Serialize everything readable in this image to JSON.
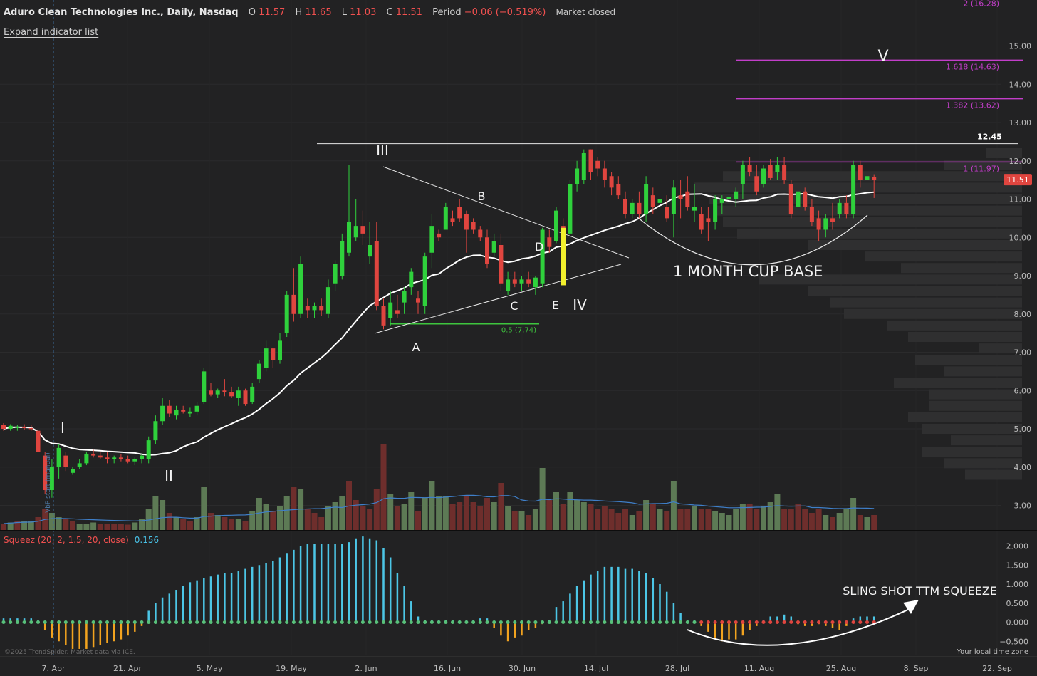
{
  "header": {
    "title": "Aduro Clean Technologies Inc., Daily, Nasdaq",
    "o_label": "O",
    "o": "11.57",
    "h_label": "H",
    "h": "11.65",
    "l_label": "L",
    "l": "11.03",
    "c_label": "C",
    "c": "11.51",
    "period_label": "Period",
    "period": "−0.06 (−0.519%)",
    "status": "Market closed"
  },
  "expand_link": "Expand indicator list",
  "squeeze": {
    "label": "Squeez (20, 2, 1.5, 20, close)",
    "value": "0.156"
  },
  "copyright": "©2025 TrendSpider. Market data via ICE.",
  "timezone": "Your local time zone",
  "colors": {
    "up": "#2fd13c",
    "down": "#e0453f",
    "ma": "#ffffff",
    "fib": "#c23ec9",
    "sq_up": "#4cc6e6",
    "sq_down": "#f2a31f",
    "sq_dot_green": "#58c07a",
    "sq_dot_red": "#e0453f",
    "highlight_bar": "#f3f02d",
    "price_tag": "#e0453f",
    "vol_up": "#5d7a55",
    "vol_down": "#6e2e2c"
  },
  "chart_data": {
    "type": "candlestick",
    "x_ticks": [
      "7. Apr",
      "21. Apr",
      "5. May",
      "19. May",
      "2. Jun",
      "16. Jun",
      "30. Jun",
      "14. Jul",
      "28. Jul",
      "11. Aug",
      "25. Aug",
      "8. Sep",
      "22. Sep"
    ],
    "y_ticks": [
      "3.00",
      "4.00",
      "5.00",
      "6.00",
      "7.00",
      "8.00",
      "9.00",
      "10.00",
      "11.00",
      "12.00",
      "13.00",
      "14.00",
      "15.00"
    ],
    "ylim": [
      2.3,
      16.5
    ],
    "last_price": "11.51",
    "resistance": {
      "value": 12.45,
      "label": "12.45"
    },
    "candles": [
      [
        5.1,
        5.15,
        4.95,
        5.0
      ],
      [
        5.0,
        5.12,
        4.95,
        5.08
      ],
      [
        5.05,
        5.1,
        4.95,
        5.05
      ],
      [
        5.05,
        5.12,
        4.98,
        5.02
      ],
      [
        5.02,
        5.1,
        4.95,
        5.0
      ],
      [
        4.95,
        5.0,
        4.3,
        4.4
      ],
      [
        4.3,
        4.4,
        3.3,
        3.4
      ],
      [
        3.4,
        4.2,
        3.2,
        4.0
      ],
      [
        4.0,
        4.6,
        3.7,
        4.5
      ],
      [
        4.3,
        4.4,
        3.9,
        4.0
      ],
      [
        3.85,
        4.0,
        3.8,
        3.95
      ],
      [
        4.0,
        4.2,
        3.95,
        4.1
      ],
      [
        4.1,
        4.4,
        4.05,
        4.35
      ],
      [
        4.35,
        4.45,
        4.25,
        4.3
      ],
      [
        4.3,
        4.4,
        4.2,
        4.25
      ],
      [
        4.25,
        4.4,
        4.1,
        4.2
      ],
      [
        4.2,
        4.3,
        4.1,
        4.25
      ],
      [
        4.25,
        4.35,
        4.15,
        4.2
      ],
      [
        4.2,
        4.3,
        4.1,
        4.15
      ],
      [
        4.15,
        4.25,
        4.05,
        4.2
      ],
      [
        4.2,
        4.35,
        4.1,
        4.3
      ],
      [
        4.2,
        4.8,
        4.1,
        4.7
      ],
      [
        4.7,
        5.35,
        4.6,
        5.2
      ],
      [
        5.2,
        5.8,
        5.1,
        5.6
      ],
      [
        5.6,
        5.75,
        5.3,
        5.4
      ],
      [
        5.35,
        5.6,
        5.25,
        5.5
      ],
      [
        5.5,
        5.6,
        5.4,
        5.45
      ],
      [
        5.4,
        5.55,
        5.3,
        5.45
      ],
      [
        5.45,
        5.7,
        5.35,
        5.6
      ],
      [
        5.7,
        6.6,
        5.65,
        6.5
      ],
      [
        6.0,
        6.2,
        5.85,
        5.9
      ],
      [
        5.9,
        6.05,
        5.8,
        6.0
      ],
      [
        6.0,
        6.3,
        5.85,
        5.95
      ],
      [
        5.95,
        6.1,
        5.8,
        5.85
      ],
      [
        5.8,
        6.1,
        5.6,
        6.0
      ],
      [
        6.0,
        6.05,
        5.6,
        5.65
      ],
      [
        5.7,
        6.2,
        5.65,
        6.1
      ],
      [
        6.3,
        6.8,
        6.2,
        6.7
      ],
      [
        6.6,
        7.3,
        6.5,
        7.1
      ],
      [
        7.1,
        7.1,
        6.6,
        6.8
      ],
      [
        6.8,
        7.5,
        6.7,
        7.3
      ],
      [
        7.5,
        8.6,
        7.4,
        8.5
      ],
      [
        8.5,
        9.2,
        7.8,
        8.0
      ],
      [
        8.0,
        9.5,
        7.9,
        9.3
      ],
      [
        8.2,
        8.4,
        7.9,
        8.1
      ],
      [
        8.1,
        8.3,
        7.9,
        8.2
      ],
      [
        8.2,
        8.4,
        7.95,
        8.1
      ],
      [
        8.0,
        8.9,
        7.9,
        8.7
      ],
      [
        8.8,
        9.4,
        8.6,
        9.3
      ],
      [
        9.0,
        10.1,
        8.9,
        9.9
      ],
      [
        9.6,
        11.9,
        9.5,
        10.4
      ],
      [
        10.0,
        11.0,
        9.9,
        10.3
      ],
      [
        10.3,
        10.7,
        9.8,
        10.1
      ],
      [
        9.5,
        10.4,
        9.3,
        9.8
      ],
      [
        9.9,
        10.4,
        8.1,
        8.2
      ],
      [
        8.2,
        8.4,
        7.6,
        7.7
      ],
      [
        7.9,
        8.6,
        7.7,
        8.3
      ],
      [
        8.1,
        8.5,
        7.9,
        8.0
      ],
      [
        8.3,
        8.7,
        8.0,
        8.6
      ],
      [
        8.7,
        9.2,
        8.5,
        9.1
      ],
      [
        8.4,
        8.6,
        8.0,
        8.3
      ],
      [
        8.2,
        9.6,
        8.0,
        9.5
      ],
      [
        9.6,
        10.6,
        9.2,
        10.3
      ],
      [
        10.1,
        10.2,
        9.9,
        10.0
      ],
      [
        10.2,
        10.9,
        10.2,
        10.8
      ],
      [
        10.5,
        10.7,
        10.3,
        10.4
      ],
      [
        10.8,
        11.0,
        10.4,
        10.5
      ],
      [
        10.6,
        10.7,
        9.6,
        10.2
      ],
      [
        10.4,
        10.5,
        10.1,
        10.2
      ],
      [
        10.2,
        10.3,
        9.9,
        10.0
      ],
      [
        10.0,
        10.2,
        9.2,
        9.3
      ],
      [
        9.6,
        10.1,
        9.5,
        9.9
      ],
      [
        9.8,
        10.1,
        8.6,
        8.8
      ],
      [
        8.6,
        9.1,
        8.5,
        8.9
      ],
      [
        8.9,
        9.1,
        8.7,
        8.8
      ],
      [
        8.8,
        9.0,
        8.6,
        8.9
      ],
      [
        8.9,
        9.1,
        8.7,
        8.8
      ],
      [
        8.7,
        9.0,
        8.5,
        8.95
      ],
      [
        8.8,
        10.25,
        8.7,
        10.2
      ],
      [
        10.0,
        10.2,
        9.6,
        9.75
      ],
      [
        9.9,
        10.8,
        9.85,
        10.7
      ],
      [
        10.3,
        10.5,
        10.0,
        10.1
      ],
      [
        10.1,
        11.5,
        10.05,
        11.4
      ],
      [
        11.4,
        12.0,
        11.2,
        11.8
      ],
      [
        11.5,
        12.3,
        11.4,
        12.2
      ],
      [
        12.3,
        12.3,
        11.5,
        11.7
      ],
      [
        12.0,
        12.1,
        11.6,
        11.8
      ],
      [
        11.8,
        12.0,
        11.3,
        11.5
      ],
      [
        11.6,
        11.7,
        11.1,
        11.3
      ],
      [
        11.4,
        11.6,
        11.0,
        11.1
      ],
      [
        11.0,
        11.2,
        10.5,
        10.6
      ],
      [
        10.6,
        11.0,
        10.5,
        10.9
      ],
      [
        10.9,
        11.2,
        10.5,
        10.6
      ],
      [
        10.6,
        11.6,
        10.4,
        11.4
      ],
      [
        11.1,
        11.3,
        10.6,
        10.8
      ],
      [
        10.9,
        11.2,
        10.6,
        11.0
      ],
      [
        10.8,
        11.1,
        10.4,
        10.5
      ],
      [
        10.6,
        11.5,
        10.0,
        11.3
      ],
      [
        11.1,
        11.5,
        10.5,
        11.0
      ],
      [
        11.2,
        11.6,
        10.7,
        10.8
      ],
      [
        10.7,
        11.4,
        10.4,
        10.8
      ],
      [
        10.6,
        10.8,
        10.1,
        10.2
      ],
      [
        10.5,
        10.8,
        9.9,
        10.4
      ],
      [
        10.4,
        11.1,
        10.2,
        11.0
      ],
      [
        10.9,
        11.1,
        10.6,
        11.0
      ],
      [
        11.0,
        11.1,
        10.8,
        11.05
      ],
      [
        11.0,
        11.3,
        10.8,
        11.2
      ],
      [
        11.4,
        12.0,
        11.0,
        11.9
      ],
      [
        11.9,
        12.1,
        11.6,
        11.7
      ],
      [
        11.6,
        11.9,
        11.1,
        11.2
      ],
      [
        11.4,
        11.9,
        11.3,
        11.8
      ],
      [
        11.9,
        12.05,
        11.5,
        11.55
      ],
      [
        11.7,
        12.1,
        11.5,
        11.9
      ],
      [
        11.9,
        12.1,
        11.4,
        11.5
      ],
      [
        11.4,
        11.5,
        10.5,
        10.6
      ],
      [
        10.8,
        11.3,
        10.6,
        11.2
      ],
      [
        11.2,
        11.3,
        10.7,
        10.8
      ],
      [
        10.8,
        11.0,
        10.3,
        10.4
      ],
      [
        10.5,
        10.7,
        9.9,
        10.2
      ],
      [
        10.2,
        10.6,
        10.0,
        10.5
      ],
      [
        10.5,
        10.9,
        10.2,
        10.4
      ],
      [
        10.6,
        11.0,
        10.5,
        10.9
      ],
      [
        10.9,
        11.1,
        10.5,
        10.6
      ],
      [
        10.6,
        12.0,
        10.5,
        11.9
      ],
      [
        11.9,
        12.0,
        11.3,
        11.5
      ],
      [
        11.5,
        11.7,
        11.2,
        11.6
      ],
      [
        11.57,
        11.65,
        11.03,
        11.51
      ]
    ],
    "volume": [
      [
        0,
        0.3
      ],
      [
        1,
        0.35
      ],
      [
        0,
        0.4
      ],
      [
        1,
        0.4
      ],
      [
        1,
        0.4
      ],
      [
        0,
        0.6
      ],
      [
        0,
        1.0
      ],
      [
        1,
        0.8
      ],
      [
        1,
        0.6
      ],
      [
        0,
        0.5
      ],
      [
        0,
        0.4
      ],
      [
        1,
        0.3
      ],
      [
        1,
        0.3
      ],
      [
        1,
        0.35
      ],
      [
        0,
        0.3
      ],
      [
        0,
        0.3
      ],
      [
        0,
        0.3
      ],
      [
        0,
        0.3
      ],
      [
        0,
        0.25
      ],
      [
        1,
        0.35
      ],
      [
        1,
        0.5
      ],
      [
        1,
        1.0
      ],
      [
        1,
        1.6
      ],
      [
        1,
        1.4
      ],
      [
        0,
        0.8
      ],
      [
        1,
        0.6
      ],
      [
        0,
        0.5
      ],
      [
        0,
        0.4
      ],
      [
        1,
        0.6
      ],
      [
        1,
        2.0
      ],
      [
        0,
        0.8
      ],
      [
        1,
        0.7
      ],
      [
        0,
        0.6
      ],
      [
        0,
        0.5
      ],
      [
        1,
        0.5
      ],
      [
        0,
        0.4
      ],
      [
        1,
        0.9
      ],
      [
        1,
        1.5
      ],
      [
        1,
        1.2
      ],
      [
        0,
        0.9
      ],
      [
        1,
        1.1
      ],
      [
        1,
        1.6
      ],
      [
        0,
        2.0
      ],
      [
        1,
        1.9
      ],
      [
        0,
        1.0
      ],
      [
        0,
        0.8
      ],
      [
        0,
        0.6
      ],
      [
        1,
        1.1
      ],
      [
        1,
        1.3
      ],
      [
        1,
        1.6
      ],
      [
        0,
        2.3
      ],
      [
        0,
        1.4
      ],
      [
        0,
        1.1
      ],
      [
        0,
        1.0
      ],
      [
        0,
        1.9
      ],
      [
        0,
        4.0
      ],
      [
        1,
        1.7
      ],
      [
        0,
        1.1
      ],
      [
        1,
        1.2
      ],
      [
        1,
        1.8
      ],
      [
        0,
        0.9
      ],
      [
        1,
        1.5
      ],
      [
        1,
        2.3
      ],
      [
        1,
        1.6
      ],
      [
        1,
        1.6
      ],
      [
        0,
        1.2
      ],
      [
        0,
        1.3
      ],
      [
        0,
        1.6
      ],
      [
        0,
        1.3
      ],
      [
        0,
        1.1
      ],
      [
        0,
        1.5
      ],
      [
        1,
        1.3
      ],
      [
        0,
        2.2
      ],
      [
        1,
        1.1
      ],
      [
        0,
        0.9
      ],
      [
        1,
        0.9
      ],
      [
        0,
        0.7
      ],
      [
        1,
        1.0
      ],
      [
        1,
        2.9
      ],
      [
        0,
        1.4
      ],
      [
        1,
        1.8
      ],
      [
        0,
        1.2
      ],
      [
        1,
        1.8
      ],
      [
        1,
        1.4
      ],
      [
        1,
        1.3
      ],
      [
        0,
        1.2
      ],
      [
        0,
        1.0
      ],
      [
        0,
        1.1
      ],
      [
        0,
        1.0
      ],
      [
        0,
        0.8
      ],
      [
        0,
        1.0
      ],
      [
        1,
        0.7
      ],
      [
        0,
        0.9
      ],
      [
        1,
        1.4
      ],
      [
        0,
        1.2
      ],
      [
        1,
        1.0
      ],
      [
        0,
        0.9
      ],
      [
        1,
        2.3
      ],
      [
        0,
        1.0
      ],
      [
        0,
        1.0
      ],
      [
        1,
        1.1
      ],
      [
        0,
        1.0
      ],
      [
        0,
        1.0
      ],
      [
        1,
        0.9
      ],
      [
        1,
        0.8
      ],
      [
        1,
        0.7
      ],
      [
        1,
        1.0
      ],
      [
        1,
        1.2
      ],
      [
        0,
        1.2
      ],
      [
        0,
        1.0
      ],
      [
        1,
        1.1
      ],
      [
        1,
        1.3
      ],
      [
        1,
        1.7
      ],
      [
        0,
        1.0
      ],
      [
        0,
        1.0
      ],
      [
        0,
        1.2
      ],
      [
        0,
        1.0
      ],
      [
        0,
        0.8
      ],
      [
        0,
        1.0
      ],
      [
        1,
        0.7
      ],
      [
        0,
        0.6
      ],
      [
        1,
        0.8
      ],
      [
        1,
        1.0
      ],
      [
        1,
        1.5
      ],
      [
        0,
        0.7
      ],
      [
        1,
        0.6
      ],
      [
        0,
        0.7
      ]
    ],
    "squeeze_hist": [
      0.1,
      0.1,
      0.1,
      0.1,
      0.1,
      0.05,
      -0.2,
      -0.4,
      -0.5,
      -0.6,
      -0.7,
      -0.7,
      -0.7,
      -0.65,
      -0.6,
      -0.55,
      -0.5,
      -0.45,
      -0.35,
      -0.25,
      -0.1,
      0.3,
      0.5,
      0.65,
      0.75,
      0.85,
      0.95,
      1.05,
      1.1,
      1.15,
      1.2,
      1.25,
      1.3,
      1.3,
      1.35,
      1.4,
      1.45,
      1.5,
      1.55,
      1.6,
      1.7,
      1.8,
      1.9,
      2.0,
      2.05,
      2.05,
      2.05,
      2.05,
      2.05,
      2.05,
      2.1,
      2.2,
      2.25,
      2.2,
      2.15,
      1.95,
      1.7,
      1.3,
      0.95,
      0.55,
      0.15,
      0.05,
      0.05,
      0.05,
      0.05,
      0.05,
      0.05,
      0.05,
      0.05,
      0.1,
      0.1,
      -0.15,
      -0.35,
      -0.5,
      -0.4,
      -0.35,
      -0.2,
      -0.15,
      -0.05,
      0.05,
      0.4,
      0.55,
      0.75,
      0.95,
      1.1,
      1.25,
      1.35,
      1.45,
      1.45,
      1.45,
      1.4,
      1.4,
      1.35,
      1.3,
      1.15,
      1.0,
      0.8,
      0.5,
      0.25,
      0.05,
      0.05,
      -0.1,
      -0.25,
      -0.4,
      -0.5,
      -0.45,
      -0.45,
      -0.35,
      -0.2,
      -0.1,
      0.05,
      0.15,
      0.15,
      0.2,
      0.15,
      -0.05,
      -0.1,
      -0.1,
      -0.05,
      -0.1,
      -0.15,
      -0.2,
      -0.1,
      0.1,
      0.15,
      0.15,
      0.15
    ],
    "squeeze_ticks": [
      "2.000",
      "1.500",
      "1.000",
      "0.500",
      "0.000",
      "−0.500"
    ],
    "fib_levels": [
      {
        "value": 16.28,
        "label": "2 (16.28)"
      },
      {
        "value": 14.63,
        "label": "1.618 (14.63)"
      },
      {
        "value": 13.62,
        "label": "1.382 (13.62)"
      },
      {
        "value": 11.97,
        "label": "1 (11.97)"
      }
    ],
    "support_label": "0.5 (7.74)",
    "annotations": {
      "wave_I": "I",
      "wave_II": "II",
      "wave_III": "III",
      "wave_IV": "IV",
      "wave_V": "V",
      "A": "A",
      "B": "B",
      "C": "C",
      "D": "D",
      "E": "E",
      "cup": "1 MONTH CUP BASE",
      "squeeze_note": "SLING SHOT TTM SQUEEZE",
      "vbp": "VbP start (manual)"
    }
  }
}
